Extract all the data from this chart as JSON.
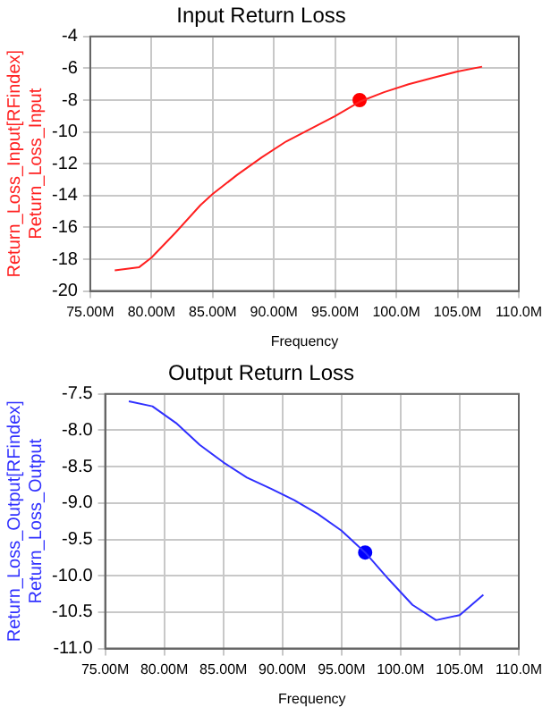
{
  "chart_data": [
    {
      "type": "line",
      "title": "Input Return Loss",
      "xlabel": "Frequency",
      "ylabel": "Return_Loss_Input[RFindex]\nReturn_Loss_Input",
      "grid": true,
      "legend": false,
      "xlim": [
        75,
        110
      ],
      "xticks": [
        {
          "value": 75,
          "label": "75.00M"
        },
        {
          "value": 80,
          "label": "80.00M"
        },
        {
          "value": 85,
          "label": "85.00M"
        },
        {
          "value": 90,
          "label": "90.00M"
        },
        {
          "value": 95,
          "label": "95.00M"
        },
        {
          "value": 100,
          "label": "100.0M"
        },
        {
          "value": 105,
          "label": "105.0M"
        },
        {
          "value": 110,
          "label": "110.0M"
        }
      ],
      "ylim": [
        -20,
        -4
      ],
      "yticks": [
        -20,
        -18,
        -16,
        -14,
        -12,
        -10,
        -8,
        -6,
        -4
      ],
      "series": [
        {
          "type": "line",
          "marker": "none",
          "color": "#ff2020",
          "x": [
            77,
            79,
            80,
            82,
            84,
            85,
            87,
            89,
            91,
            93,
            95,
            97,
            99,
            101,
            103,
            105,
            107
          ],
          "values": [
            -18.7,
            -18.5,
            -17.9,
            -16.3,
            -14.6,
            -13.9,
            -12.7,
            -11.6,
            -10.6,
            -9.8,
            -9.0,
            -8.1,
            -7.5,
            -7.0,
            -6.6,
            -6.2,
            -5.9
          ]
        },
        {
          "type": "scatter",
          "marker": "circle",
          "color": "#ff0000",
          "x": [
            97
          ],
          "values": [
            -8.0
          ]
        }
      ]
    },
    {
      "type": "line",
      "title": "Output Return Loss",
      "xlabel": "Frequency",
      "ylabel": "Return_Loss_Output[RFindex]\nReturn_Loss_Output",
      "grid": true,
      "legend": false,
      "xlim": [
        75,
        110
      ],
      "xticks": [
        {
          "value": 75,
          "label": "75.00M"
        },
        {
          "value": 80,
          "label": "80.00M"
        },
        {
          "value": 85,
          "label": "85.00M"
        },
        {
          "value": 90,
          "label": "90.00M"
        },
        {
          "value": 95,
          "label": "95.00M"
        },
        {
          "value": 100,
          "label": "100.0M"
        },
        {
          "value": 105,
          "label": "105.0M"
        },
        {
          "value": 110,
          "label": "110.0M"
        }
      ],
      "ylim": [
        -11,
        -7.5
      ],
      "yticks": [
        {
          "value": -11,
          "label": "-11.0"
        },
        {
          "value": -10.5,
          "label": "-10.5"
        },
        {
          "value": -10,
          "label": "-10.0"
        },
        {
          "value": -9.5,
          "label": "-9.5"
        },
        {
          "value": -9,
          "label": "-9.0"
        },
        {
          "value": -8.5,
          "label": "-8.5"
        },
        {
          "value": -8,
          "label": "-8.0"
        },
        {
          "value": -7.5,
          "label": "-7.5"
        }
      ],
      "series": [
        {
          "type": "line",
          "marker": "none",
          "color": "#3030ff",
          "x": [
            77,
            79,
            81,
            83,
            85,
            87,
            89,
            91,
            93,
            95,
            97,
            99,
            101,
            103,
            105,
            107
          ],
          "values": [
            -7.6,
            -7.67,
            -7.9,
            -8.2,
            -8.44,
            -8.65,
            -8.8,
            -8.96,
            -9.15,
            -9.38,
            -9.68,
            -10.05,
            -10.4,
            -10.61,
            -10.54,
            -10.26
          ]
        },
        {
          "type": "scatter",
          "marker": "circle",
          "color": "#0000ff",
          "x": [
            97
          ],
          "values": [
            -9.68
          ]
        }
      ]
    }
  ]
}
